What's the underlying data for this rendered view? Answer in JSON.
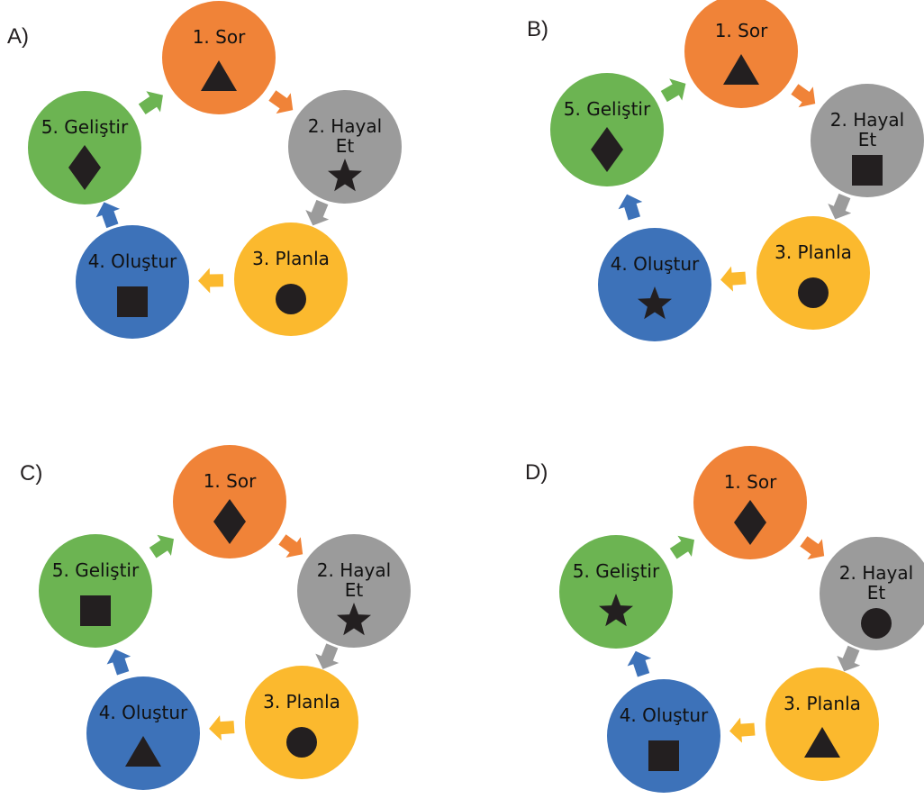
{
  "colors": {
    "sor": "#f08338",
    "hayal": "#9b9b9b",
    "planla": "#fbb92e",
    "olustur": "#3d72b9",
    "gelistir": "#6cb452",
    "shape": "#231f20",
    "label": "#231f20"
  },
  "steps": {
    "sor": [
      "1. Sor"
    ],
    "hayal": [
      "2. Hayal",
      "Et"
    ],
    "planla": [
      "3. Planla"
    ],
    "olustur": [
      "4. Oluştur"
    ],
    "gelistir": [
      "5. Geliştir"
    ]
  },
  "panels": [
    {
      "label": "A)",
      "icons": {
        "sor": "triangle",
        "hayal": "star",
        "planla": "circle",
        "olustur": "square",
        "gelistir": "diamond"
      }
    },
    {
      "label": "B)",
      "icons": {
        "sor": "triangle",
        "hayal": "square",
        "planla": "circle",
        "olustur": "star",
        "gelistir": "diamond"
      }
    },
    {
      "label": "C)",
      "icons": {
        "sor": "diamond",
        "hayal": "star",
        "planla": "circle",
        "olustur": "triangle",
        "gelistir": "square"
      }
    },
    {
      "label": "D)",
      "icons": {
        "sor": "diamond",
        "hayal": "circle",
        "planla": "triangle",
        "olustur": "square",
        "gelistir": "star"
      }
    }
  ]
}
